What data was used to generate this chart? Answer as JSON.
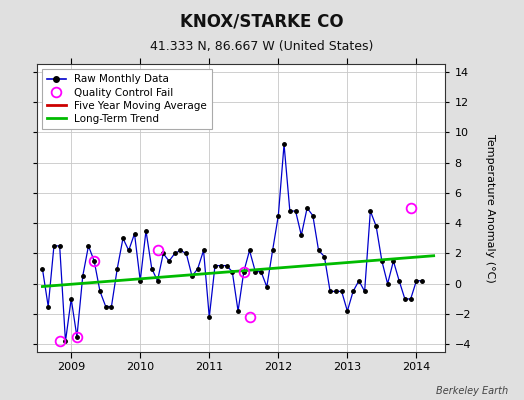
{
  "title": "KNOX/STARKE CO",
  "subtitle": "41.333 N, 86.667 W (United States)",
  "ylabel": "Temperature Anomaly (°C)",
  "credit": "Berkeley Earth",
  "ylim": [
    -4.5,
    14.5
  ],
  "xlim": [
    2008.5,
    2014.42
  ],
  "yticks": [
    -4,
    -2,
    0,
    2,
    4,
    6,
    8,
    10,
    12,
    14
  ],
  "xticks": [
    2009,
    2010,
    2011,
    2012,
    2013,
    2014
  ],
  "raw_x": [
    2008.583,
    2008.667,
    2008.75,
    2008.833,
    2008.917,
    2009.0,
    2009.083,
    2009.167,
    2009.25,
    2009.333,
    2009.417,
    2009.5,
    2009.583,
    2009.667,
    2009.75,
    2009.833,
    2009.917,
    2010.0,
    2010.083,
    2010.167,
    2010.25,
    2010.333,
    2010.417,
    2010.5,
    2010.583,
    2010.667,
    2010.75,
    2010.833,
    2010.917,
    2011.0,
    2011.083,
    2011.167,
    2011.25,
    2011.333,
    2011.417,
    2011.5,
    2011.583,
    2011.667,
    2011.75,
    2011.833,
    2011.917,
    2012.0,
    2012.083,
    2012.167,
    2012.25,
    2012.333,
    2012.417,
    2012.5,
    2012.583,
    2012.667,
    2012.75,
    2012.833,
    2012.917,
    2013.0,
    2013.083,
    2013.167,
    2013.25,
    2013.333,
    2013.417,
    2013.5,
    2013.583,
    2013.667,
    2013.75,
    2013.833,
    2013.917,
    2014.0,
    2014.083
  ],
  "raw_y": [
    1.0,
    -1.5,
    2.5,
    2.5,
    -3.8,
    -1.0,
    -3.5,
    0.5,
    2.5,
    1.5,
    -0.5,
    -1.5,
    -1.5,
    1.0,
    3.0,
    2.2,
    3.3,
    0.2,
    3.5,
    1.0,
    0.2,
    2.0,
    1.5,
    2.0,
    2.2,
    2.0,
    0.5,
    1.0,
    2.2,
    -2.2,
    1.2,
    1.2,
    1.2,
    0.8,
    -1.8,
    0.8,
    2.2,
    0.8,
    0.8,
    -0.2,
    2.2,
    4.5,
    9.2,
    4.8,
    4.8,
    3.2,
    5.0,
    4.5,
    2.2,
    1.8,
    -0.5,
    -0.5,
    -0.5,
    -1.8,
    -0.5,
    0.2,
    -0.5,
    4.8,
    3.8,
    1.5,
    0.0,
    1.5,
    0.2,
    -1.0,
    -1.0,
    0.2,
    0.2
  ],
  "qc_fail_x": [
    2008.833,
    2009.083,
    2009.333,
    2010.25,
    2011.5,
    2011.583,
    2013.917
  ],
  "qc_fail_y": [
    -3.8,
    -3.5,
    1.5,
    2.2,
    0.8,
    -2.2,
    5.0
  ],
  "trend_x": [
    2008.583,
    2014.25
  ],
  "trend_y": [
    -0.18,
    1.85
  ],
  "bg_color": "#e0e0e0",
  "plot_bg_color": "#ffffff",
  "raw_line_color": "#0000cc",
  "raw_dot_color": "#000000",
  "qc_marker_color": "#ff00ff",
  "trend_color": "#00bb00",
  "moving_avg_color": "#cc0000",
  "grid_color": "#c8c8c8",
  "title_fontsize": 12,
  "subtitle_fontsize": 9,
  "tick_fontsize": 8,
  "legend_fontsize": 7.5,
  "credit_fontsize": 7
}
